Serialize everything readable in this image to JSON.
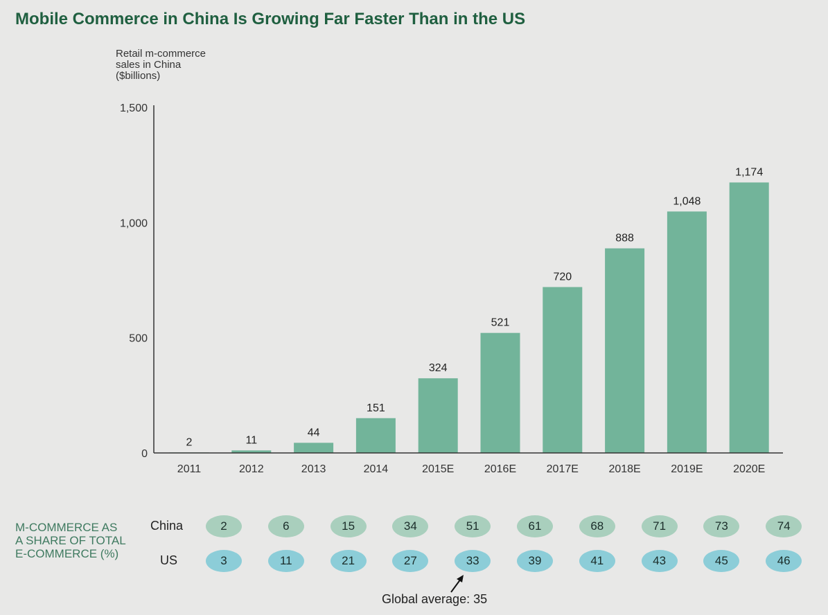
{
  "chart_data": {
    "type": "bar",
    "title": "Mobile Commerce in China Is Growing Far Faster Than in the US",
    "ylabel": "Retail m-commerce\nsales in China\n($billions)",
    "xlabel": "",
    "ylim": [
      0,
      1500
    ],
    "yticks": [
      {
        "v": 0,
        "label": "0"
      },
      {
        "v": 500,
        "label": "500"
      },
      {
        "v": 1000,
        "label": "1,000"
      },
      {
        "v": 1500,
        "label": "1,500"
      }
    ],
    "categories": [
      "2011",
      "2012",
      "2013",
      "2014",
      "2015E",
      "2016E",
      "2017E",
      "2018E",
      "2019E",
      "2020E"
    ],
    "values": [
      2,
      11,
      44,
      151,
      324,
      521,
      720,
      888,
      1048,
      1174
    ],
    "value_labels": [
      "2",
      "11",
      "44",
      "151",
      "324",
      "521",
      "720",
      "888",
      "1,048",
      "1,174"
    ],
    "bar_color": "#72b49a",
    "grid": false
  },
  "share_table": {
    "label": "M-COMMERCE AS\nA SHARE OF TOTAL\nE-COMMERCE (%)",
    "rows": [
      {
        "name": "China",
        "values": [
          "2",
          "6",
          "15",
          "34",
          "51",
          "61",
          "68",
          "71",
          "73",
          "74"
        ],
        "color": "#a9cfbd"
      },
      {
        "name": "US",
        "values": [
          "3",
          "11",
          "21",
          "27",
          "33",
          "39",
          "41",
          "43",
          "45",
          "46"
        ],
        "color": "#8ccdd8"
      }
    ],
    "annotation": "Global average: 35"
  }
}
